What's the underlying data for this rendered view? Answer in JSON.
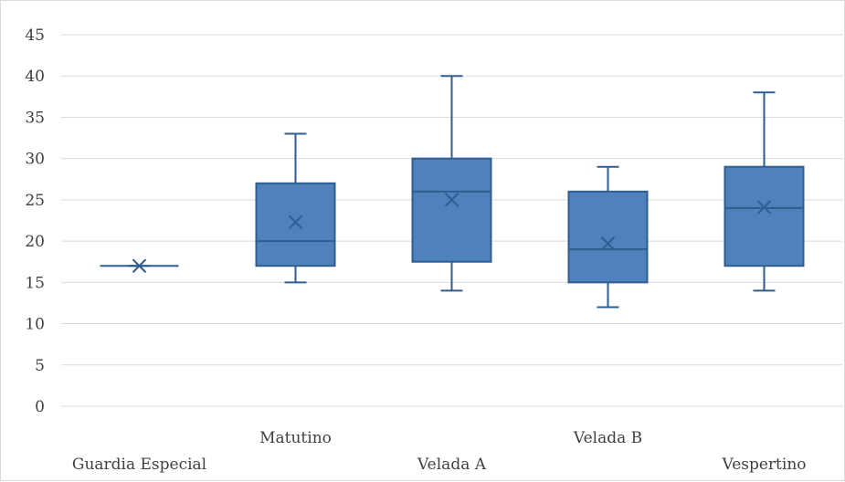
{
  "chart_data": {
    "type": "box",
    "title": "",
    "xlabel": "",
    "ylabel": "",
    "ylim": [
      0,
      45
    ],
    "yticks": [
      0,
      5,
      10,
      15,
      20,
      25,
      30,
      35,
      40,
      45
    ],
    "grid": true,
    "legend": "none",
    "colors": {
      "box_fill": "#4f81bd",
      "box_stroke": "#2f5d8f",
      "grid": "#d9d9d9",
      "text": "#404040"
    },
    "categories": [
      "Guardia Especial",
      "Matutino",
      "Velada A",
      "Velada B",
      "Vespertino"
    ],
    "boxes": [
      {
        "category": "Guardia Especial",
        "min": 17,
        "q1": 17,
        "median": 17,
        "q3": 17,
        "max": 17,
        "mean": 17
      },
      {
        "category": "Matutino",
        "min": 15,
        "q1": 17,
        "median": 20,
        "q3": 27,
        "max": 33,
        "mean": 22.3
      },
      {
        "category": "Velada A",
        "min": 14,
        "q1": 17.5,
        "median": 26,
        "q3": 30,
        "max": 40,
        "mean": 25
      },
      {
        "category": "Velada B",
        "min": 12,
        "q1": 15,
        "median": 19,
        "q3": 26,
        "max": 29,
        "mean": 19.7
      },
      {
        "category": "Vespertino",
        "min": 14,
        "q1": 17,
        "median": 24,
        "q3": 29,
        "max": 38,
        "mean": 24.1
      }
    ]
  }
}
